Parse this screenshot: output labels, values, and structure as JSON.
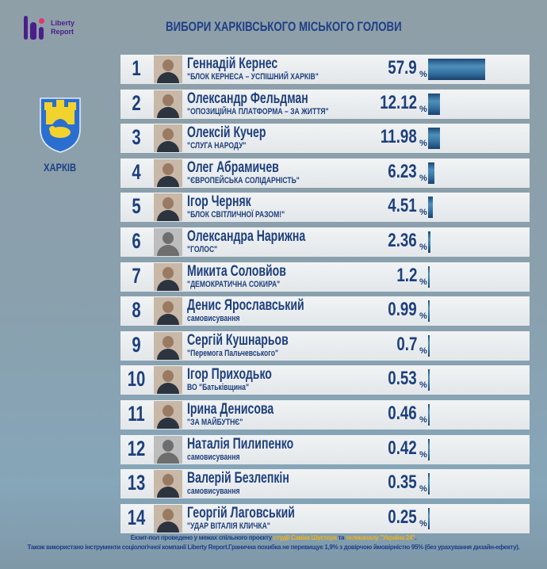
{
  "header": {
    "logo_line1": "Liberty",
    "logo_line2": "Report",
    "title": "ВИБОРИ ХАРКІВСЬКОГО МІСЬКОГО ГОЛОВИ"
  },
  "city": {
    "name": "ХАРКІВ",
    "crest_icon": "city-coat-of-arms"
  },
  "colors": {
    "text": "#1d3f7c",
    "bar": "#3674a3",
    "highlight": "#f2b21a",
    "logo": "#4b1f8a"
  },
  "percent_sign": "%",
  "candidates": [
    {
      "rank": "1",
      "name": "Геннадій Кернес",
      "party": "\"БЛОК КЕРНЕСА – УСПІШНИЙ ХАРКІВ\"",
      "percent": "57.9",
      "value": 57.9
    },
    {
      "rank": "2",
      "name": "Олександр Фельдман",
      "party": "\"ОПОЗИЦІЙНА ПЛАТФОРМА – ЗА ЖИТТЯ\"",
      "percent": "12.12",
      "value": 12.12
    },
    {
      "rank": "3",
      "name": "Олексій Кучер",
      "party": "\"СЛУГА НАРОДУ\"",
      "percent": "11.98",
      "value": 11.98
    },
    {
      "rank": "4",
      "name": "Олег Абрамичев",
      "party": "\"ЄВРОПЕЙСЬКА СОЛІДАРНІСТЬ\"",
      "percent": "6.23",
      "value": 6.23
    },
    {
      "rank": "5",
      "name": "Ігор Черняк",
      "party": "\"БЛОК СВІТЛИЧНОЇ РАЗОМ!\"",
      "percent": "4.51",
      "value": 4.51
    },
    {
      "rank": "6",
      "name": "Олександра Нарижна",
      "party": "\"ГОЛОС\"",
      "percent": "2.36",
      "value": 2.36,
      "placeholder_photo": true
    },
    {
      "rank": "7",
      "name": "Микита Соловйов",
      "party": "\"ДЕМОКРАТИЧНА СОКИРА\"",
      "percent": "1.2",
      "value": 1.2
    },
    {
      "rank": "8",
      "name": "Денис Ярославський",
      "party": "самовисування",
      "percent": "0.99",
      "value": 0.99
    },
    {
      "rank": "9",
      "name": "Сергій Кушнарьов",
      "party": "\"Перемога Пальчевського\"",
      "percent": "0.7",
      "value": 0.7
    },
    {
      "rank": "10",
      "name": "Ігор Приходько",
      "party": "ВО \"Батьківщина\"",
      "percent": "0.53",
      "value": 0.53
    },
    {
      "rank": "11",
      "name": "Ірина Денисова",
      "party": "\"ЗА МАЙБУТНЄ\"",
      "percent": "0.46",
      "value": 0.46
    },
    {
      "rank": "12",
      "name": "Наталія Пилипенко",
      "party": "самовисування",
      "percent": "0.42",
      "value": 0.42,
      "placeholder_photo": true
    },
    {
      "rank": "13",
      "name": "Валерій Безлепкін",
      "party": "самовисування",
      "percent": "0.35",
      "value": 0.35
    },
    {
      "rank": "14",
      "name": "Георгій Лаговський",
      "party": "\"УДАР ВІТАЛІЯ КЛИЧКА\"",
      "percent": "0.25",
      "value": 0.25
    }
  ],
  "footer": {
    "line1_a": "Екзит-пол проведено у межах спільного проєкту ",
    "line1_b": "студії Савіка Шустера",
    "line1_c": " та ",
    "line1_d": "телеканалу \"Україна 24\"",
    "line1_e": ".",
    "line2": "Також використано інструменти соціологічної компанії Liberty Report.Гранична похибка не перевищує 1,9% з довірчою ймовірністю 95% (без урахування дизайн-ефекту)."
  }
}
